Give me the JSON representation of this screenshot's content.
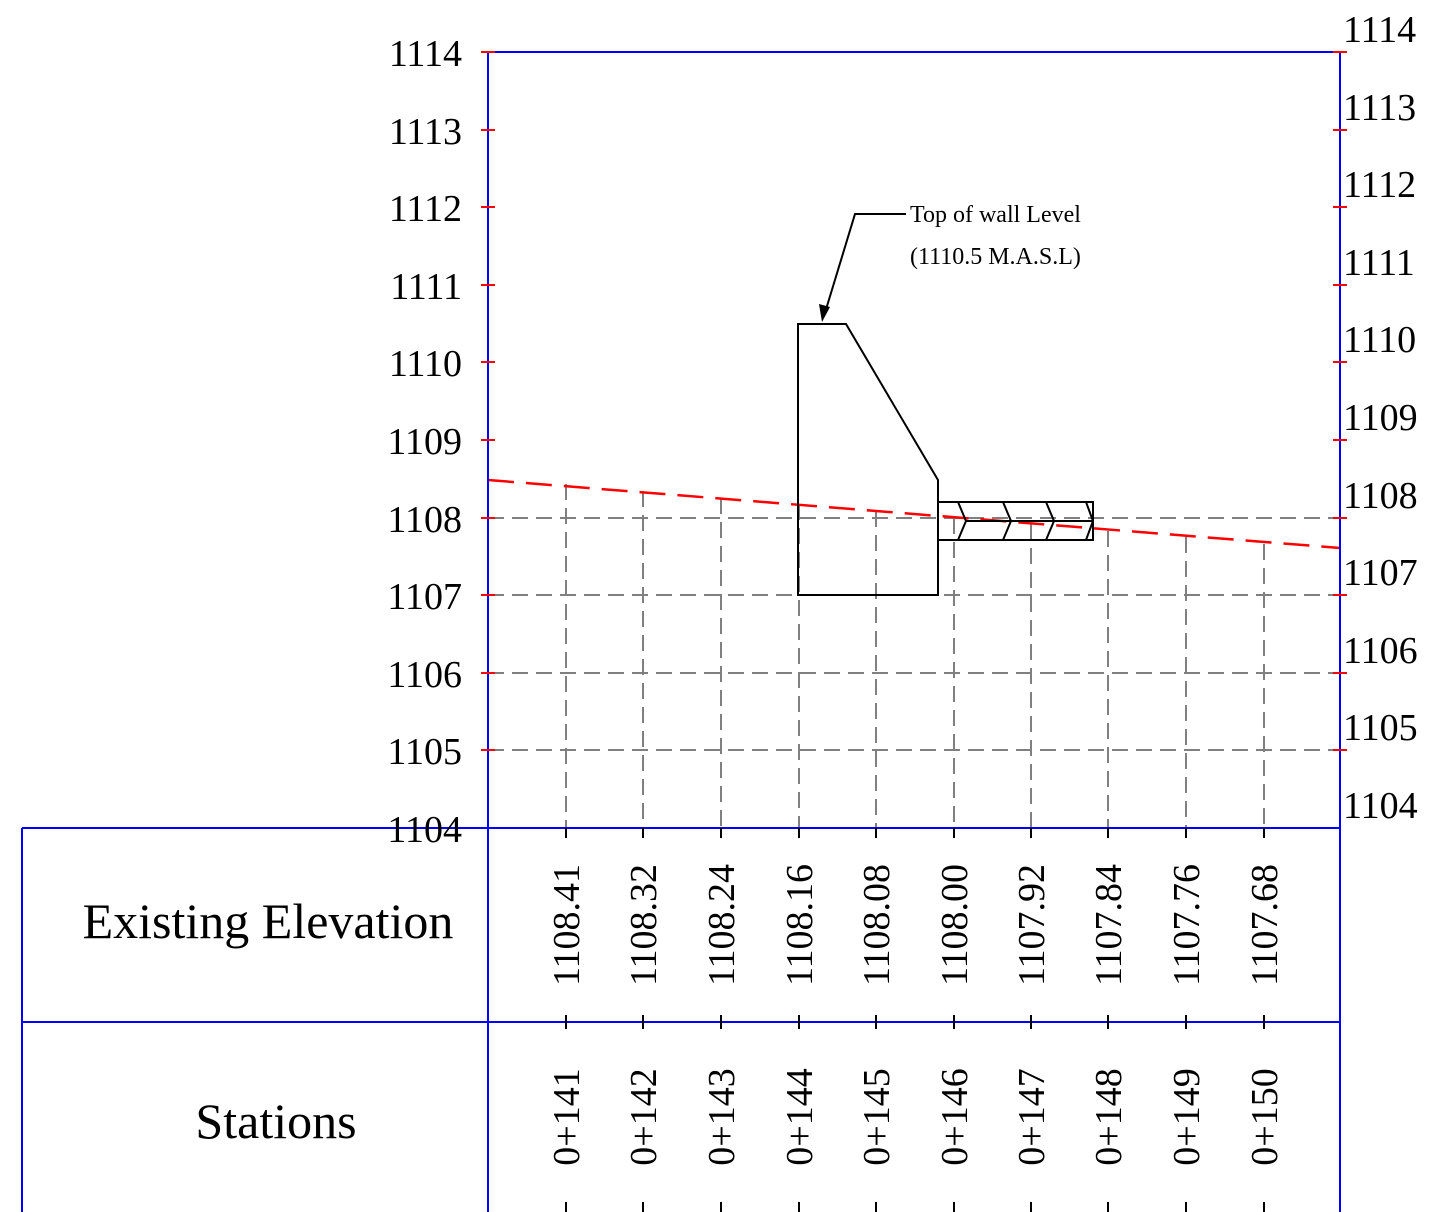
{
  "profile": {
    "elevation_ticks": [
      "1114",
      "1113",
      "1112",
      "1111",
      "1110",
      "1109",
      "1108",
      "1107",
      "1106",
      "1105",
      "1104"
    ],
    "rows": {
      "existing_elevation_label": "Existing Elevation",
      "stations_label": "Stations"
    },
    "stations": [
      "0+141",
      "0+142",
      "0+143",
      "0+144",
      "0+145",
      "0+146",
      "0+147",
      "0+148",
      "0+149",
      "0+150"
    ],
    "existing_elevations": [
      "1108.41",
      "1108.32",
      "1108.24",
      "1108.16",
      "1108.08",
      "1108.00",
      "1107.92",
      "1107.84",
      "1107.76",
      "1107.68"
    ],
    "callout": {
      "line1": "Top of wall Level",
      "line2": "(1110.5 M.A.S.L)"
    },
    "colors": {
      "frame": "#0000ff",
      "ground_line": "#ff0000",
      "grid": "#808080",
      "tick": "#ff0000",
      "wall": "#000000"
    }
  }
}
